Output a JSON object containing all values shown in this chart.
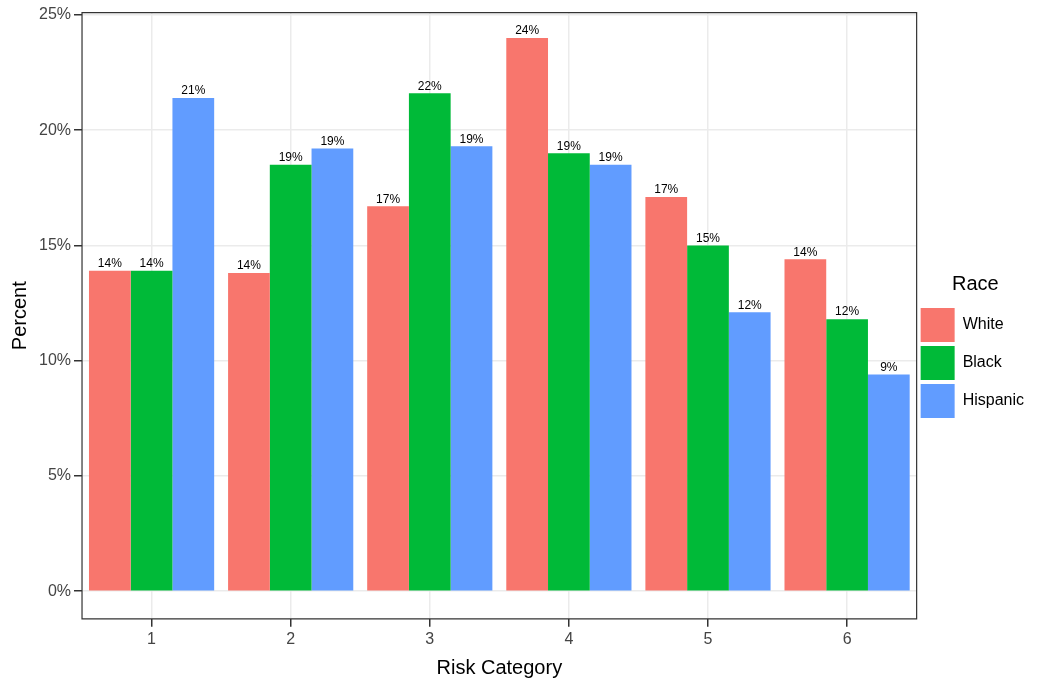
{
  "chart_data": {
    "type": "bar",
    "xlabel": "Risk Category",
    "ylabel": "Percent",
    "legend_title": "Race",
    "legend": "right",
    "grid": true,
    "categories": [
      "1",
      "2",
      "3",
      "4",
      "5",
      "6"
    ],
    "ylim": [
      -1.2,
      25.1
    ],
    "yticks": [
      {
        "value": 0,
        "label": "0%"
      },
      {
        "value": 5,
        "label": "5%"
      },
      {
        "value": 10,
        "label": "10%"
      },
      {
        "value": 15,
        "label": "15%"
      },
      {
        "value": 20,
        "label": "20%"
      },
      {
        "value": 25,
        "label": "25%"
      }
    ],
    "series": [
      {
        "name": "White",
        "color": "#f8766d",
        "values": [
          13.9,
          13.8,
          16.7,
          24.0,
          17.1,
          14.4
        ],
        "value_labels": [
          "14%",
          "14%",
          "17%",
          "24%",
          "17%",
          "14%"
        ]
      },
      {
        "name": "Black",
        "color": "#00ba38",
        "values": [
          13.9,
          18.5,
          21.6,
          19.0,
          15.0,
          11.8
        ],
        "value_labels": [
          "14%",
          "19%",
          "22%",
          "19%",
          "15%",
          "12%"
        ]
      },
      {
        "name": "Hispanic",
        "color": "#619cff",
        "values": [
          21.4,
          19.2,
          19.3,
          18.5,
          12.1,
          9.4
        ],
        "value_labels": [
          "21%",
          "19%",
          "19%",
          "19%",
          "12%",
          "9%"
        ]
      }
    ]
  }
}
